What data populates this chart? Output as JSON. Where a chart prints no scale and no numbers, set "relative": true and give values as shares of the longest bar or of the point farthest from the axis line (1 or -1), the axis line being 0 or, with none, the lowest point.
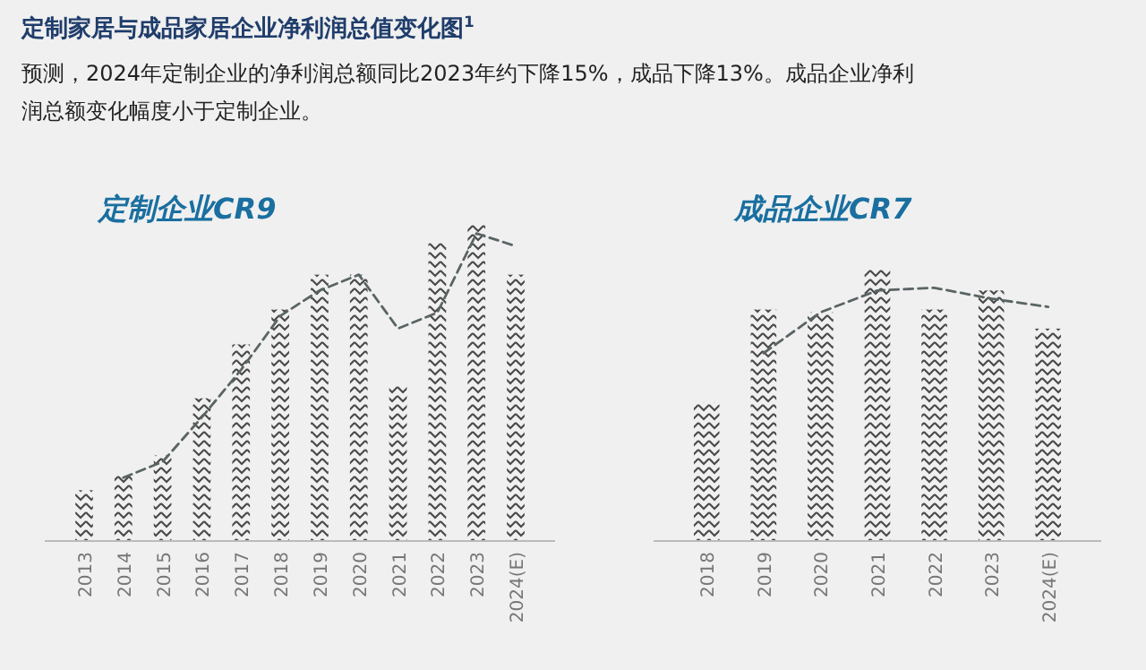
{
  "chart_data": [
    {
      "type": "other",
      "title": "定制家居与成品家居企业净利润总值变化图$^{1}$",
      "subtitle": "预测，2024年定制企业的净利润总额同比2023年约下降15%，成品下降13%。成品企业净利润总额变化幅度小于定制企业。"
    },
    {
      "type": "bar",
      "title": "定制企业CR9",
      "relative": true,
      "categories": [
        "2013",
        "2014",
        "2015",
        "2016",
        "2017",
        "2018",
        "2019",
        "2020",
        "2021",
        "2022",
        "2023",
        "2024(E)"
      ],
      "series": [
        {
          "type": "bar",
          "color": "#4a4a4a",
          "values": [
            0.16,
            0.21,
            0.27,
            0.45,
            0.62,
            0.73,
            0.84,
            0.84,
            0.49,
            0.94,
            1,
            0.84
          ]
        },
        {
          "type": "line",
          "color": "#5a6464",
          "line_style": "dashed",
          "values": [
            null,
            0.2,
            0.25,
            0.39,
            0.54,
            0.71,
            0.79,
            0.84,
            0.67,
            0.72,
            0.97,
            0.93
          ]
        }
      ]
    },
    {
      "type": "bar",
      "title": "成品企业CR7",
      "relative": true,
      "categories": [
        "2018",
        "2019",
        "2020",
        "2021",
        "2022",
        "2023",
        "2024(E)"
      ],
      "series": [
        {
          "type": "bar",
          "color": "#4a4a4a",
          "values": [
            0.51,
            0.85,
            0.84,
            1,
            0.85,
            0.92,
            0.78
          ]
        },
        {
          "type": "line",
          "color": "#5a6464",
          "line_style": "dashed",
          "values": [
            null,
            0.69,
            0.84,
            0.92,
            0.93,
            0.89,
            0.86
          ]
        }
      ]
    }
  ]
}
